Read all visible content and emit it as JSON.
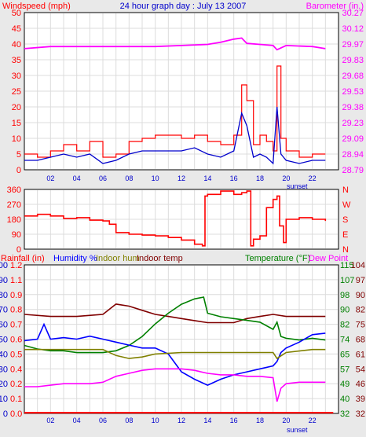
{
  "colors": {
    "wind": "#ff0000",
    "gust": "#0000cc",
    "baro": "#ff00ff",
    "dir": "#ff0000",
    "rain": "#ff0000",
    "humidity": "#0000ff",
    "indoor_hum": "#808000",
    "indoor_temp": "#800000",
    "temperature": "#008000",
    "dew_point": "#ff00ff",
    "outside_humidity_trace": "#0000ff"
  },
  "chart_data": [
    {
      "type": "line",
      "title": "24 hour graph day : July 13 2007",
      "ylabel_left": "Windspeed (mph)",
      "ylabel_right": "Barometer (in.)",
      "ylim": [
        0,
        50
      ],
      "y_ticks": [
        "0",
        "5",
        "10",
        "15",
        "20",
        "25",
        "30",
        "35",
        "40",
        "45",
        "50"
      ],
      "right_ylim": [
        28.79,
        30.27
      ],
      "right_ticks": [
        "28.79",
        "28.94",
        "29.09",
        "29.23",
        "29.38",
        "29.53",
        "29.68",
        "29.83",
        "29.97",
        "30.12",
        "30.27"
      ],
      "x_ticks": [
        "02",
        "04",
        "06",
        "08",
        "10",
        "12",
        "14",
        "16",
        "18",
        "20",
        "22"
      ],
      "x_annotation": "sunset",
      "series": [
        {
          "name": "Windspeed (mph)",
          "color_key": "wind",
          "x": [
            0,
            1,
            2,
            3,
            4,
            5,
            6,
            7,
            8,
            9,
            10,
            11,
            12,
            13,
            14,
            15,
            16,
            16.6,
            17,
            17.5,
            18,
            18.5,
            19,
            19.3,
            19.6,
            20,
            21,
            22,
            23
          ],
          "values": [
            5,
            4,
            6,
            8,
            6,
            9,
            4,
            5,
            9,
            10,
            11,
            11,
            10,
            11,
            9,
            8,
            11,
            27,
            22,
            8,
            11,
            9,
            6,
            33,
            10,
            6,
            4,
            5,
            5
          ]
        },
        {
          "name": "",
          "color_key": "gust",
          "x": [
            0,
            1,
            2,
            3,
            4,
            5,
            6,
            7,
            8,
            9,
            10,
            11,
            12,
            13,
            14,
            15,
            16,
            16.6,
            17,
            17.5,
            18,
            18.5,
            19,
            19.3,
            19.6,
            20,
            21,
            22,
            23
          ],
          "values": [
            3,
            3,
            4,
            5,
            4,
            5,
            2,
            3,
            5,
            6,
            6,
            6,
            6,
            7,
            5,
            4,
            6,
            18,
            14,
            4,
            5,
            4,
            2,
            20,
            5,
            3,
            2,
            3,
            3
          ]
        },
        {
          "name": "Barometer (in.)",
          "color_key": "baro",
          "axis": "right",
          "x": [
            0,
            2,
            4,
            6,
            8,
            10,
            12,
            14,
            15,
            16,
            16.6,
            17,
            18,
            19,
            19.3,
            20,
            22,
            23
          ],
          "values": [
            29.93,
            29.95,
            29.95,
            29.95,
            29.95,
            29.95,
            29.96,
            29.97,
            29.99,
            30.02,
            30.03,
            29.98,
            29.97,
            29.96,
            29.92,
            29.96,
            29.95,
            29.93
          ]
        }
      ]
    },
    {
      "type": "line",
      "ylim": [
        0,
        360
      ],
      "y_ticks": [
        "0",
        "90",
        "180",
        "270",
        "360"
      ],
      "right_ticks": [
        "N",
        "E",
        "S",
        "W",
        "N"
      ],
      "x_ticks": [],
      "series": [
        {
          "name": "",
          "color_key": "dir",
          "x": [
            0,
            1,
            2,
            3,
            4,
            5,
            6,
            6.5,
            7,
            8,
            9,
            10,
            11,
            12,
            13,
            13.6,
            13.8,
            14,
            15,
            16,
            16.6,
            17,
            17.3,
            17.5,
            18,
            18.5,
            19,
            19.3,
            19.5,
            19.8,
            20,
            21,
            22,
            23
          ],
          "values": [
            200,
            210,
            200,
            185,
            190,
            175,
            170,
            150,
            100,
            90,
            85,
            80,
            70,
            55,
            30,
            20,
            320,
            330,
            350,
            330,
            340,
            350,
            20,
            60,
            80,
            250,
            300,
            320,
            140,
            40,
            180,
            190,
            180,
            170
          ]
        }
      ]
    },
    {
      "type": "line",
      "ylabel_left": "Rainfall (in)",
      "legend": [
        "Humidity %",
        "Indoor hum",
        "Indoor temp",
        "Temperature (°F)",
        "Dew Point"
      ],
      "left_ticks_humidity": [
        "0",
        "10",
        "20",
        "30",
        "40",
        "50",
        "60",
        "70",
        "80",
        "90",
        "100"
      ],
      "left_ticks_rain": [
        "0.0",
        "0.1",
        "0.2",
        "0.4",
        "0.5",
        "0.6",
        "0.7",
        "0.8",
        "0.9",
        "1.1",
        "1.2"
      ],
      "right_ticks_inner": [
        "32",
        "40",
        "49",
        "57",
        "65",
        "74",
        "82",
        "90",
        "98",
        "107",
        "115"
      ],
      "right_ticks_outer": [
        "32",
        "39",
        "46",
        "54",
        "61",
        "68",
        "75",
        "82",
        "90",
        "97",
        "104"
      ],
      "x_ticks": [
        "02",
        "04",
        "06",
        "08",
        "10",
        "12",
        "14",
        "16",
        "18",
        "20",
        "22"
      ],
      "x_annotation": "sunset",
      "series": [
        {
          "name": "Indoor temp",
          "color_key": "indoor_temp",
          "axis": "right_outer",
          "x": [
            0,
            2,
            4,
            6,
            7,
            8,
            9,
            10,
            11,
            12,
            13,
            14,
            15,
            16,
            17,
            18,
            19,
            20,
            21,
            22,
            23
          ],
          "values": [
            80,
            79,
            79,
            80,
            85,
            84,
            82,
            80,
            79,
            78,
            77,
            76,
            76,
            76,
            78,
            79,
            80,
            79,
            79,
            79,
            79
          ]
        },
        {
          "name": "Temperature (°F)",
          "color_key": "temperature",
          "axis": "right_inner",
          "x": [
            0,
            1,
            2,
            3,
            4,
            5,
            6,
            7,
            8,
            9,
            10,
            11,
            12,
            13,
            13.7,
            14,
            15,
            16,
            17,
            18,
            19,
            19.3,
            19.6,
            20,
            21,
            22,
            23
          ],
          "values": [
            70,
            68,
            67,
            67,
            66,
            66,
            66,
            67,
            70,
            75,
            82,
            88,
            93,
            96,
            97,
            88,
            86,
            85,
            84,
            83,
            79,
            83,
            75,
            74,
            73,
            74,
            73
          ]
        },
        {
          "name": "Humidity %",
          "color_key": "humidity",
          "axis": "left",
          "x": [
            0,
            1,
            1.5,
            2,
            3,
            4,
            5,
            6,
            7,
            8,
            9,
            10,
            11,
            12,
            13,
            14,
            15,
            16,
            17,
            18,
            19,
            19.3,
            19.6,
            20,
            21,
            22,
            23
          ],
          "values": [
            49,
            50,
            60,
            50,
            51,
            50,
            52,
            50,
            48,
            46,
            44,
            44,
            40,
            28,
            23,
            19,
            23,
            26,
            28,
            30,
            32,
            35,
            41,
            44,
            48,
            53,
            54
          ]
        },
        {
          "name": "Indoor hum",
          "color_key": "indoor_hum",
          "axis": "left",
          "x": [
            0,
            2,
            4,
            6,
            7,
            8,
            9,
            10,
            12,
            14,
            16,
            18,
            19,
            19.3,
            20,
            22,
            23
          ],
          "values": [
            43,
            43,
            43,
            43,
            39,
            37,
            38,
            40,
            41,
            41,
            41,
            41,
            41,
            37,
            41,
            43,
            43
          ]
        },
        {
          "name": "Dew Point",
          "color_key": "dew_point",
          "axis": "left",
          "x": [
            0,
            1,
            2,
            3,
            4,
            5,
            6,
            7,
            8,
            9,
            10,
            11,
            12,
            13,
            14,
            15,
            16,
            17,
            18,
            19,
            19.3,
            19.6,
            20,
            21,
            22,
            23
          ],
          "values": [
            18,
            18,
            19,
            20,
            20,
            20,
            21,
            25,
            27,
            29,
            30,
            30,
            30,
            29,
            27,
            26,
            26,
            25,
            25,
            24,
            8,
            17,
            20,
            21,
            21,
            21
          ]
        },
        {
          "name": "Rainfall (in)",
          "color_key": "rain",
          "axis": "left",
          "x": [
            0,
            23.6
          ],
          "values": [
            0.5,
            0.5
          ]
        }
      ]
    }
  ]
}
